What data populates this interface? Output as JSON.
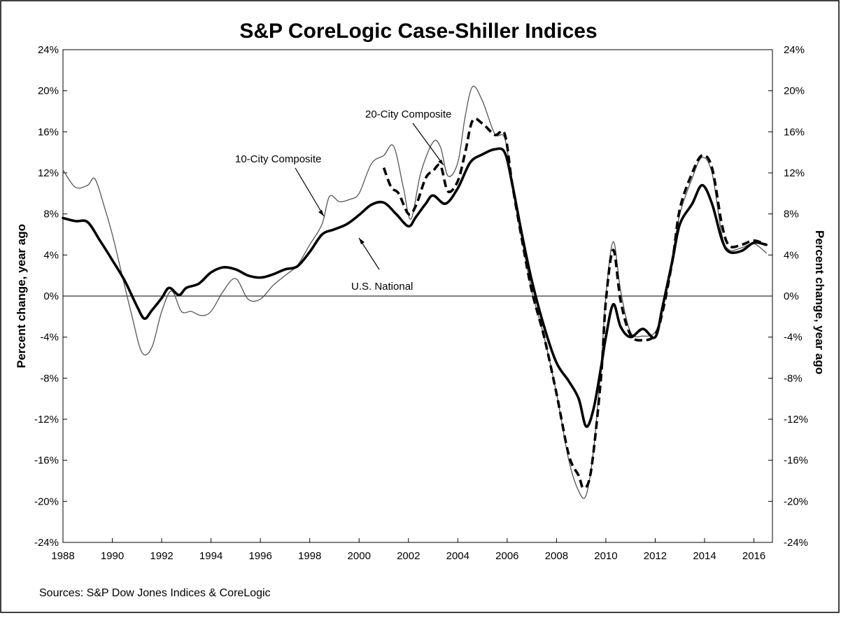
{
  "chart_data": {
    "type": "line",
    "title": "S&P CoreLogic Case-Shiller Indices",
    "ylabel_left": "Percent change, year ago",
    "ylabel_right": "Percent change, year ago",
    "xlabel": "",
    "xlim": [
      1988,
      2016.75
    ],
    "ylim": [
      -24,
      24
    ],
    "x_ticks": [
      1988,
      1990,
      1992,
      1994,
      1996,
      1998,
      2000,
      2002,
      2004,
      2006,
      2008,
      2010,
      2012,
      2014,
      2016
    ],
    "y_ticks": [
      -24,
      -20,
      -16,
      -12,
      -8,
      -4,
      0,
      4,
      8,
      12,
      16,
      20,
      24
    ],
    "y_tick_labels": [
      "-24%",
      "-20%",
      "-16%",
      "-12%",
      "-8%",
      "-4%",
      "0%",
      "4%",
      "8%",
      "12%",
      "16%",
      "20%",
      "24%"
    ],
    "grid": false,
    "zero_line": true,
    "source": "Sources: S&P Dow Jones Indices & CoreLogic",
    "annotations": [
      {
        "text": "10-City Composite",
        "series": "10-City Composite"
      },
      {
        "text": "20-City Composite",
        "series": "20-City Composite"
      },
      {
        "text": "U.S. National",
        "series": "U.S. National"
      }
    ],
    "series": [
      {
        "name": "U.S. National",
        "style": "solid-thick",
        "color": "#000000",
        "x": [
          1988,
          1988.5,
          1989,
          1989.5,
          1990,
          1990.5,
          1991,
          1991.3,
          1991.6,
          1992,
          1992.3,
          1992.7,
          1993,
          1993.5,
          1994,
          1994.5,
          1995,
          1995.5,
          1996,
          1996.5,
          1997,
          1997.5,
          1998,
          1998.5,
          1999,
          1999.5,
          2000,
          2000.5,
          2001,
          2001.5,
          2002,
          2002.3,
          2002.7,
          2003,
          2003.5,
          2004,
          2004.5,
          2005,
          2005.5,
          2005.9,
          2006.2,
          2006.6,
          2007,
          2007.5,
          2008,
          2008.5,
          2008.9,
          2009.2,
          2009.5,
          2009.8,
          2010,
          2010.3,
          2010.6,
          2011,
          2011.5,
          2012,
          2012.3,
          2012.7,
          2013,
          2013.5,
          2013.9,
          2014.3,
          2014.7,
          2015,
          2015.5,
          2016,
          2016.5
        ],
        "values": [
          7.6,
          7.3,
          7.2,
          5.4,
          3.5,
          1.5,
          -1.0,
          -2.2,
          -1.4,
          -0.2,
          0.8,
          0.1,
          0.8,
          1.2,
          2.3,
          2.8,
          2.6,
          2.0,
          1.8,
          2.1,
          2.6,
          2.9,
          4.3,
          6.0,
          6.5,
          7.0,
          7.9,
          8.9,
          9.1,
          8.0,
          6.8,
          7.7,
          9.0,
          9.8,
          9.0,
          10.5,
          13.0,
          13.8,
          14.3,
          14.0,
          11.0,
          6.0,
          1.5,
          -3.0,
          -6.5,
          -8.3,
          -10.0,
          -12.7,
          -11.0,
          -7.0,
          -4.0,
          -0.8,
          -3.0,
          -4.0,
          -3.2,
          -4.0,
          -1.0,
          3.5,
          7.0,
          9.0,
          10.8,
          9.0,
          5.5,
          4.3,
          4.4,
          5.2,
          5.0
        ]
      },
      {
        "name": "10-City Composite",
        "style": "solid-thin",
        "color": "#555555",
        "x": [
          1988,
          1988.5,
          1989,
          1989.3,
          1989.7,
          1990,
          1990.4,
          1990.8,
          1991.2,
          1991.6,
          1992,
          1992.4,
          1992.8,
          1993.2,
          1993.6,
          1994,
          1994.5,
          1995,
          1995.5,
          1996,
          1996.5,
          1997,
          1997.5,
          1998,
          1998.5,
          1998.8,
          1999.2,
          1999.6,
          2000,
          2000.5,
          2001,
          2001.4,
          2001.8,
          2002.1,
          2002.5,
          2003,
          2003.3,
          2003.6,
          2004,
          2004.3,
          2004.6,
          2005,
          2005.5,
          2005.9,
          2006.2,
          2006.6,
          2007,
          2007.5,
          2008,
          2008.5,
          2008.9,
          2009.2,
          2009.5,
          2009.8,
          2010,
          2010.3,
          2010.6,
          2011,
          2011.5,
          2012,
          2012.3,
          2012.7,
          2013,
          2013.5,
          2013.9,
          2014.3,
          2014.7,
          2015,
          2015.5,
          2016,
          2016.5
        ],
        "values": [
          12.3,
          10.6,
          10.8,
          11.4,
          8.5,
          6.0,
          2.0,
          -2.0,
          -5.5,
          -5.0,
          -1.5,
          0.5,
          -1.5,
          -1.5,
          -1.9,
          -1.5,
          0.5,
          1.7,
          -0.3,
          -0.3,
          1.0,
          2.0,
          3.0,
          5.0,
          7.0,
          9.7,
          9.2,
          9.4,
          10.0,
          12.9,
          13.7,
          14.6,
          10.5,
          7.5,
          12.0,
          15.0,
          14.5,
          11.7,
          13.0,
          17.5,
          20.4,
          19.0,
          15.8,
          15.4,
          11.0,
          5.5,
          0.5,
          -4.0,
          -9.5,
          -16.0,
          -19.0,
          -19.4,
          -15.0,
          -7.0,
          0.0,
          5.3,
          0.5,
          -3.5,
          -3.9,
          -3.5,
          -1.0,
          4.0,
          8.0,
          11.5,
          13.5,
          12.0,
          6.0,
          4.5,
          4.7,
          5.1,
          4.2
        ]
      },
      {
        "name": "20-City Composite",
        "style": "dashed-thick",
        "color": "#000000",
        "x": [
          2001,
          2001.3,
          2001.6,
          2002,
          2002.3,
          2002.7,
          2003,
          2003.3,
          2003.6,
          2004,
          2004.3,
          2004.6,
          2005,
          2005.5,
          2005.9,
          2006.2,
          2006.6,
          2007,
          2007.5,
          2008,
          2008.5,
          2008.9,
          2009.1,
          2009.4,
          2009.8,
          2010,
          2010.3,
          2010.6,
          2011,
          2011.5,
          2012,
          2012.3,
          2012.7,
          2013,
          2013.5,
          2013.9,
          2014.3,
          2014.7,
          2015,
          2015.5,
          2016,
          2016.5
        ],
        "values": [
          12.5,
          10.6,
          10.0,
          8.0,
          8.8,
          11.5,
          12.2,
          12.7,
          10.2,
          11.2,
          14.0,
          17.1,
          16.8,
          15.7,
          15.8,
          11.0,
          5.5,
          0.5,
          -4.0,
          -9.5,
          -15.5,
          -17.5,
          -18.7,
          -17.0,
          -8.0,
          -0.5,
          4.5,
          -0.5,
          -3.8,
          -4.3,
          -3.8,
          -1.5,
          3.5,
          8.5,
          12.0,
          13.7,
          12.5,
          7.0,
          4.9,
          5.0,
          5.4,
          5.0
        ]
      }
    ]
  }
}
